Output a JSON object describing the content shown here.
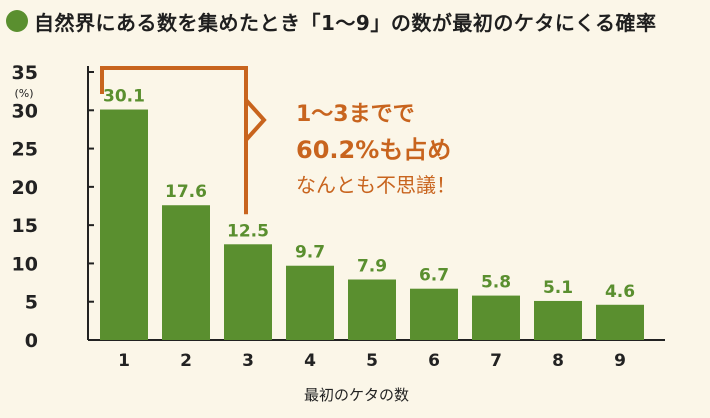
{
  "title": "自然界にある数を集めたとき「1～9」の数が最初のケタにくる確率",
  "callout": {
    "line1": "1～3までで",
    "line2": "60.2%も占め",
    "line3": "なんとも不思議！"
  },
  "chart_data": {
    "type": "bar",
    "categories": [
      "1",
      "2",
      "3",
      "4",
      "5",
      "6",
      "7",
      "8",
      "9"
    ],
    "values": [
      30.1,
      17.6,
      12.5,
      9.7,
      7.9,
      6.7,
      5.8,
      5.1,
      4.6
    ],
    "data_labels": [
      "30.1",
      "17.6",
      "12.5",
      "9.7",
      "7.9",
      "6.7",
      "5.8",
      "5.1",
      "4.6"
    ],
    "title": "",
    "xlabel": "最初のケタの数",
    "ylabel": "(%)",
    "ylim": [
      0,
      35
    ],
    "yticks": [
      "0",
      "5",
      "10",
      "15",
      "20",
      "25",
      "30",
      "35"
    ],
    "grid": false,
    "bracket_categories": [
      "1",
      "3"
    ],
    "colors": {
      "bar": "#5a8f2f",
      "bar_label": "#5a8f2f",
      "bracket": "#c8641e",
      "axis": "#222222",
      "background": "#fbf6e8"
    }
  }
}
